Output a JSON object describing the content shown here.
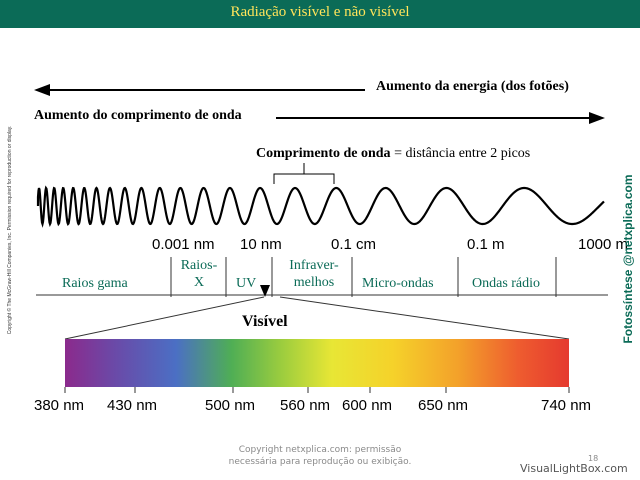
{
  "title": "Radiação visível e não visível",
  "energy_label": "Aumento da energia (dos fotões)",
  "wavelength_label": "Aumento do comprimento de onda",
  "wave_definition": {
    "bold": "Comprimento de onda",
    "rest": " = distância entre 2 picos"
  },
  "scale_labels": [
    "0.001 nm",
    "10 nm",
    "0.1 cm",
    "0.1 m",
    "1000 m"
  ],
  "regions": {
    "gamma": "Raios gama",
    "xray_1": "Raios-",
    "xray_2": "X",
    "uv": "UV",
    "ir_1": "Infraver-",
    "ir_2": "melhos",
    "micro": "Micro-ondas",
    "radio": "Ondas rádio"
  },
  "visible_label": "Visível",
  "visible_ticks": [
    "380 nm",
    "430 nm",
    "500 nm",
    "560 nm",
    "600 nm",
    "650 nm",
    "740 nm"
  ],
  "side_copyright": "Copyright © The McGraw-Hill Companies, Inc. Permission required for reproduction or display.",
  "side_credit": "Fotossíntese @netxplica.com",
  "footer_line1": "Copyright netxplica.com: permissão",
  "footer_line2": "necessária para reprodução ou exibição.",
  "page_number": "18",
  "watermark": "VisualLightBox.com",
  "colors": {
    "title_bar": "#0b6b57",
    "title_text": "#ffe45a",
    "region_text": "#0b6b57"
  }
}
